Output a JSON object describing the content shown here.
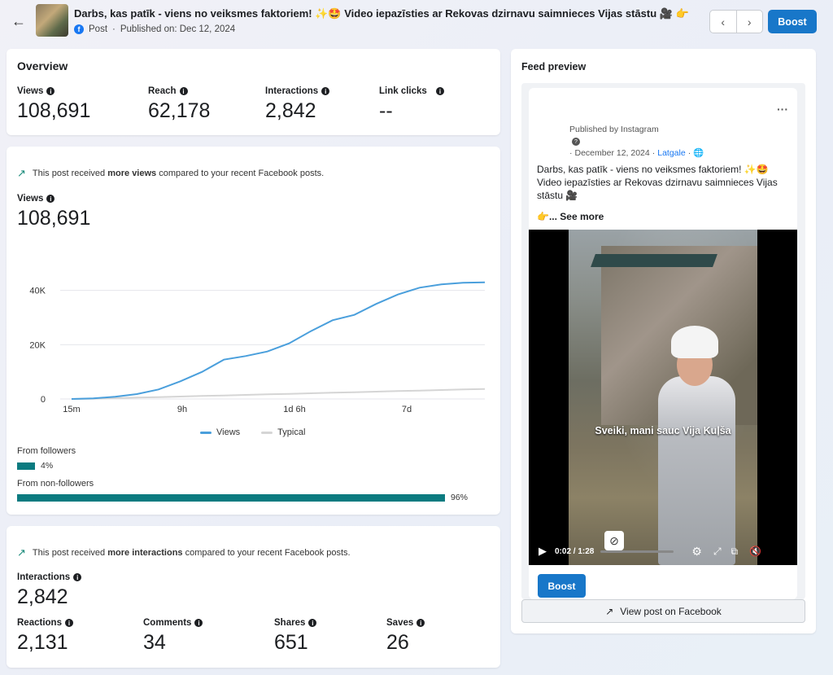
{
  "header": {
    "back_icon": "arrow-left-icon",
    "title": "Darbs, kas patīk - viens no veiksmes faktoriem! ✨🤩 Video iepazīsties ar Rekovas dzirnavu saimnieces Vijas stāstu 🎥 👉",
    "post_type": "Post",
    "published": "Published on: Dec 12, 2024",
    "boost_label": "Boost"
  },
  "overview": {
    "title": "Overview",
    "metrics": [
      {
        "label": "Views",
        "value": "108,691"
      },
      {
        "label": "Reach",
        "value": "62,178"
      },
      {
        "label": "Interactions",
        "value": "2,842"
      },
      {
        "label": "Link clicks",
        "value": "--"
      }
    ]
  },
  "views_card": {
    "note_pre": "This post received ",
    "note_bold": "more views",
    "note_post": " compared to your recent Facebook posts.",
    "label": "Views",
    "value": "108,691",
    "legend_views": "Views",
    "legend_typical": "Typical",
    "followers_label": "From followers",
    "followers_pct": "4%",
    "followers_ratio": 0.04,
    "nonfollowers_label": "From non-followers",
    "nonfollowers_pct": "96%",
    "nonfollowers_ratio": 0.96
  },
  "chart_data": {
    "type": "line",
    "x_ticks": [
      "15m",
      "9h",
      "1d 6h",
      "7d"
    ],
    "y_ticks": [
      "0",
      "20K",
      "40K"
    ],
    "ylim": [
      0,
      45000
    ],
    "series": [
      {
        "name": "Views",
        "color": "#4a9fdc",
        "values": [
          0,
          200,
          800,
          1800,
          3500,
          6500,
          10000,
          14500,
          15800,
          17500,
          20500,
          25000,
          29000,
          31000,
          35000,
          38500,
          41000,
          42200,
          42800,
          43000
        ]
      },
      {
        "name": "Typical",
        "color": "#d5d5d5",
        "values": [
          0,
          100,
          300,
          500,
          700,
          900,
          1100,
          1300,
          1500,
          1700,
          1900,
          2100,
          2300,
          2500,
          2700,
          2900,
          3100,
          3300,
          3500,
          3700
        ]
      }
    ]
  },
  "interactions_card": {
    "note_pre": "This post received ",
    "note_bold": "more interactions",
    "note_post": " compared to your recent Facebook posts.",
    "label": "Interactions",
    "value": "2,842",
    "breakdown": [
      {
        "label": "Reactions",
        "value": "2,131"
      },
      {
        "label": "Comments",
        "value": "34"
      },
      {
        "label": "Shares",
        "value": "651"
      },
      {
        "label": "Saves",
        "value": "26"
      }
    ]
  },
  "feed_preview": {
    "title": "Feed preview",
    "published_by": "Published by Instagram",
    "date": "December 12, 2024",
    "location": "Latgale",
    "caption": "Darbs, kas patīk - viens no veiksmes faktoriem! ✨🤩 Video iepazīsties ar Rekovas dzirnavu saimnieces Vijas stāstu 🎥",
    "see_more": "👉... See more",
    "video_subtitle": "Sveiki, mani sauc Vija Kuļša",
    "time": "0:02 / 1:28",
    "boost_label": "Boost",
    "view_label": "View post on Facebook"
  }
}
